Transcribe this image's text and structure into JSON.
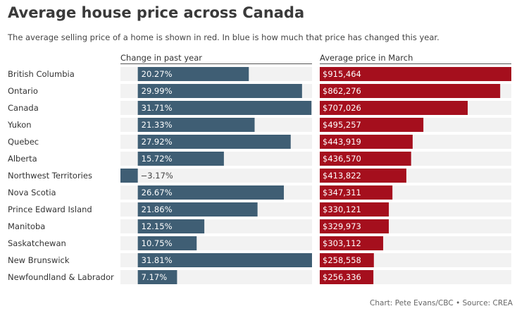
{
  "title": "Average house price across Canada",
  "subtitle": "The average selling price of a home is shown in red. In blue is how much that price has changed this year.",
  "source": "Chart: Pete Evans/CBC • Source: CREA",
  "colors": {
    "change_bar": "#3f5e74",
    "price_bar": "#a50f1d",
    "track": "#f2f2f2",
    "label_light": "#ffffff",
    "label_dark": "#444444"
  },
  "chart_data": {
    "type": "bar",
    "categories": [
      "British Columbia",
      "Ontario",
      "Canada",
      "Yukon",
      "Quebec",
      "Alberta",
      "Northwest Territories",
      "Nova Scotia",
      "Prince Edward Island",
      "Manitoba",
      "Saskatchewan",
      "New Brunswick",
      "Newfoundland & Labrador"
    ],
    "series": [
      {
        "name": "Change in past year",
        "values": [
          20.27,
          29.99,
          31.71,
          21.33,
          27.92,
          15.72,
          -3.17,
          26.67,
          21.86,
          12.15,
          10.75,
          31.81,
          7.17
        ],
        "labels": [
          "20.27%",
          "29.99%",
          "31.71%",
          "21.33%",
          "27.92%",
          "15.72%",
          "−3.17%",
          "26.67%",
          "21.86%",
          "12.15%",
          "10.75%",
          "31.81%",
          "7.17%"
        ],
        "xlim": [
          -3.17,
          31.81
        ]
      },
      {
        "name": "Average price in March",
        "values": [
          915464,
          862276,
          707026,
          495257,
          443919,
          436570,
          413822,
          347311,
          330121,
          329973,
          303112,
          258558,
          256336
        ],
        "labels": [
          "$915,464",
          "$862,276",
          "$707,026",
          "$495,257",
          "$443,919",
          "$436,570",
          "$413,822",
          "$347,311",
          "$330,121",
          "$329,973",
          "$303,112",
          "$258,558",
          "$256,336"
        ],
        "xlim": [
          0,
          915464
        ]
      }
    ]
  }
}
